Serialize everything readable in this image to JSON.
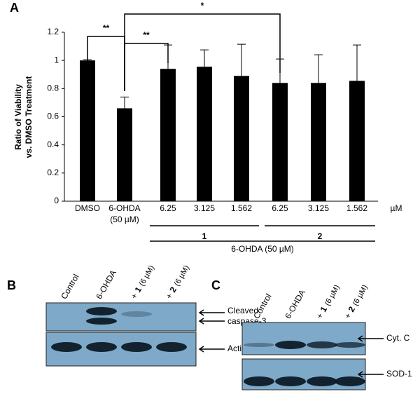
{
  "chart_data": {
    "type": "bar",
    "panel_label": "A",
    "y_label": [
      "Ratio of Viability",
      "vs. DMSO Treatment"
    ],
    "categories": [
      "DMSO",
      "6-OHDA",
      "6.25",
      "3.125",
      "1.562",
      "6.25",
      "3.125",
      "1.562"
    ],
    "category_note": "(50 µM)",
    "x_unit": "µM",
    "groups": [
      "1",
      "2"
    ],
    "treatment_label": "6-OHDA (50 µM)",
    "values": [
      1.0,
      0.66,
      0.94,
      0.955,
      0.89,
      0.84,
      0.84,
      0.855
    ],
    "errors": [
      0.005,
      0.08,
      0.17,
      0.12,
      0.225,
      0.17,
      0.2,
      0.255
    ],
    "color": "#000000",
    "ylim": [
      0,
      1.2
    ],
    "yticks": [
      0,
      0.2,
      0.4,
      0.6,
      0.8,
      1,
      1.2
    ],
    "grid": false,
    "significance": [
      "**",
      "**",
      "*"
    ]
  },
  "panel_b": {
    "label": "B",
    "lanes": [
      "Control",
      "6-OHDA"
    ],
    "treated_lanes": [
      {
        "prefix": "+",
        "compound": "1",
        "dose": "(6 µM)"
      },
      {
        "prefix": "+",
        "compound": "2",
        "dose": "(6 µM)"
      }
    ],
    "bands": [
      [
        "Cleaved",
        "caspase-3"
      ],
      [
        "Actin"
      ]
    ]
  },
  "panel_c": {
    "label": "C",
    "lanes": [
      "Control",
      "6-OHDA"
    ],
    "treated_lanes": [
      {
        "prefix": "+",
        "compound": "1",
        "dose": "(6 µM)"
      },
      {
        "prefix": "+",
        "compound": "2",
        "dose": "(6 µM)"
      }
    ],
    "bands": [
      [
        "Cyt. C"
      ],
      [
        "SOD-1"
      ]
    ]
  }
}
